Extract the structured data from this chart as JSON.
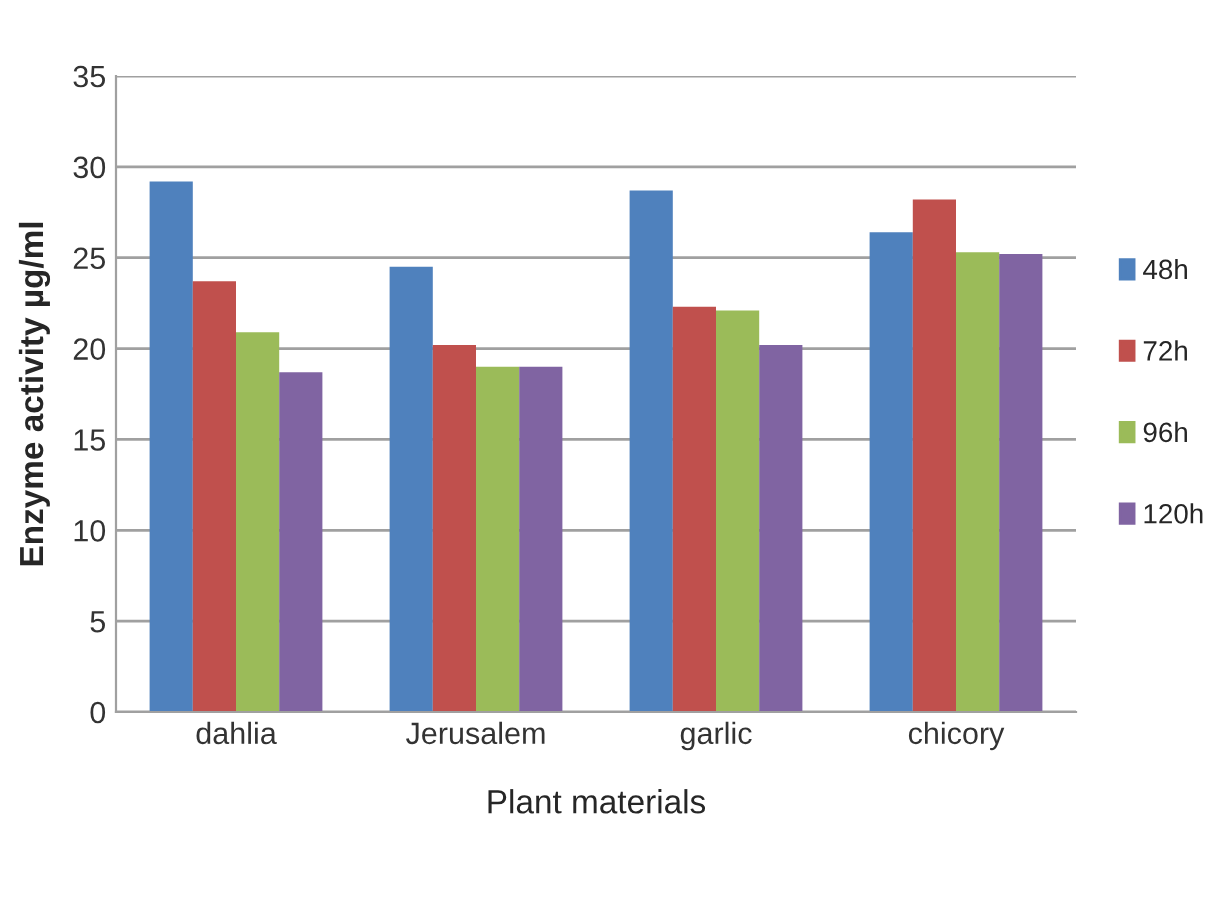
{
  "chart_data": {
    "type": "bar",
    "xlabel": "Plant materials",
    "ylabel": "Enzyme activity µg/ml",
    "categories": [
      "dahlia",
      "Jerusalem",
      "garlic",
      "chicory"
    ],
    "series": [
      {
        "name": "48h",
        "color": "#4f81bd",
        "values": [
          29.2,
          24.5,
          28.7,
          26.4
        ]
      },
      {
        "name": "72h",
        "color": "#c0504d",
        "values": [
          23.7,
          20.2,
          22.3,
          28.2
        ]
      },
      {
        "name": "96h",
        "color": "#9bbb59",
        "values": [
          20.9,
          19.0,
          22.1,
          25.3
        ]
      },
      {
        "name": "120h",
        "color": "#8064a2",
        "values": [
          18.7,
          19.0,
          20.2,
          25.2
        ]
      }
    ],
    "ylim": [
      0,
      35
    ],
    "yticks": [
      0,
      5,
      10,
      15,
      20,
      25,
      30,
      35
    ],
    "grid": "y",
    "legend": "right"
  }
}
